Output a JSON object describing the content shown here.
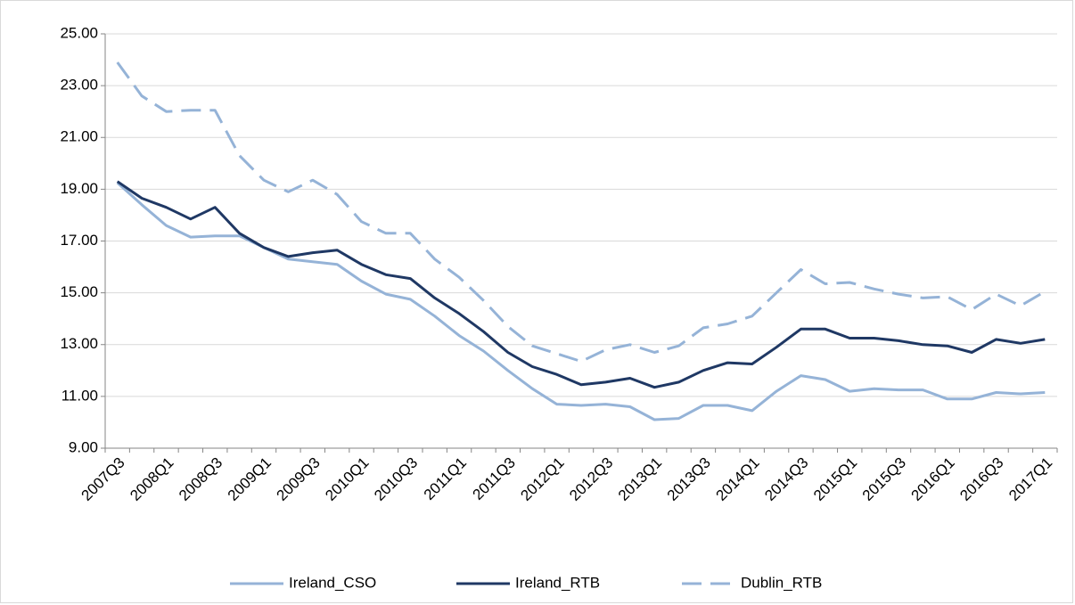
{
  "chart_data": {
    "type": "line",
    "categories": [
      "2007Q3",
      null,
      "2008Q1",
      null,
      "2008Q3",
      null,
      "2009Q1",
      null,
      "2009Q3",
      null,
      "2010Q1",
      null,
      "2010Q3",
      null,
      "2011Q1",
      null,
      "2011Q3",
      null,
      "2012Q1",
      null,
      "2012Q3",
      null,
      "2013Q1",
      null,
      "2013Q3",
      null,
      "2014Q1",
      null,
      "2014Q3",
      null,
      "2015Q1",
      null,
      "2015Q3",
      null,
      "2016Q1",
      null,
      "2016Q3",
      null,
      "2017Q1"
    ],
    "series": [
      {
        "name": "Ireland_CSO",
        "color": "#95b3d7",
        "line_style": "solid",
        "values": [
          19.25,
          18.4,
          17.6,
          17.15,
          17.2,
          17.2,
          16.75,
          16.3,
          16.2,
          16.1,
          15.45,
          14.95,
          14.75,
          14.1,
          13.35,
          12.75,
          12.0,
          11.3,
          10.7,
          10.65,
          10.7,
          10.6,
          10.1,
          10.15,
          10.65,
          10.65,
          10.45,
          11.2,
          11.8,
          11.65,
          11.2,
          11.3,
          11.25,
          11.25,
          10.9,
          10.9,
          11.15,
          11.1,
          11.15
        ]
      },
      {
        "name": "Ireland_RTB",
        "color": "#1f3864",
        "line_style": "solid",
        "values": [
          19.3,
          18.65,
          18.3,
          17.85,
          18.3,
          17.3,
          16.75,
          16.4,
          16.55,
          16.65,
          16.1,
          15.7,
          15.55,
          14.8,
          14.2,
          13.5,
          12.7,
          12.15,
          11.85,
          11.45,
          11.55,
          11.7,
          11.35,
          11.55,
          12.0,
          12.3,
          12.25,
          12.9,
          13.6,
          13.6,
          13.25,
          13.25,
          13.15,
          13.0,
          12.95,
          12.7,
          13.2,
          13.05,
          13.2
        ]
      },
      {
        "name": "Dublin_RTB",
        "color": "#95b3d7",
        "line_style": "dashed",
        "values": [
          23.9,
          22.6,
          22.0,
          22.05,
          22.05,
          20.3,
          19.35,
          18.9,
          19.35,
          18.8,
          17.75,
          17.3,
          17.3,
          16.3,
          15.6,
          14.7,
          13.7,
          12.95,
          12.65,
          12.35,
          12.8,
          13.0,
          12.7,
          12.95,
          13.65,
          13.8,
          14.1,
          15.0,
          15.9,
          15.35,
          15.4,
          15.15,
          14.95,
          14.8,
          14.85,
          14.35,
          14.95,
          14.5,
          15.05
        ]
      }
    ],
    "ylim": [
      9,
      25
    ],
    "yticks": [
      {
        "value": 9,
        "label": "9.00"
      },
      {
        "value": 11,
        "label": "11.00"
      },
      {
        "value": 13,
        "label": "13.00"
      },
      {
        "value": 15,
        "label": "15.00"
      },
      {
        "value": 17,
        "label": "17.00"
      },
      {
        "value": 19,
        "label": "19.00"
      },
      {
        "value": 21,
        "label": "21.00"
      },
      {
        "value": 23,
        "label": "23.00"
      },
      {
        "value": 25,
        "label": "25.00"
      }
    ],
    "grid": true,
    "legend": "bottom"
  }
}
